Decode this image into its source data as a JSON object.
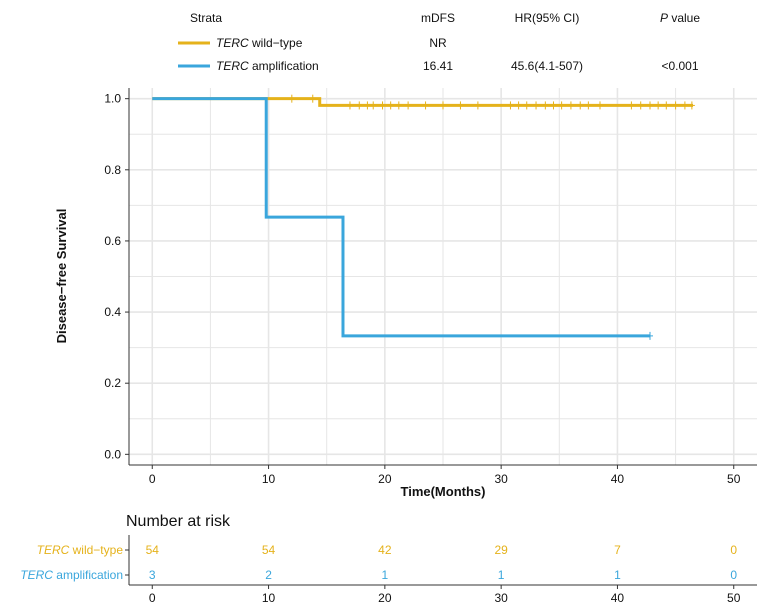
{
  "colors": {
    "wild": "#E5B21B",
    "amp": "#3AA6DC",
    "grid": "#E6E6E6",
    "axis": "#333333"
  },
  "legend": {
    "strata_header": "Strata",
    "mdfs_header": "mDFS",
    "hr_header": "HR(95% CI)",
    "p_header_italic": "P",
    "p_header_rest": " value",
    "rows": [
      {
        "gene": "TERC",
        "label": " wild−type",
        "mdfs": "NR",
        "hr": "",
        "p": ""
      },
      {
        "gene": "TERC",
        "label": " amplification",
        "mdfs": "16.41",
        "hr": "45.6(4.1-507)",
        "p": "<0.001"
      }
    ]
  },
  "chart_data": {
    "type": "line",
    "title": "",
    "xlabel": "Time(Months)",
    "ylabel": "Disease−free Survival",
    "xlim": [
      -2,
      52
    ],
    "ylim": [
      -0.03,
      1.03
    ],
    "xticks": [
      0,
      10,
      20,
      30,
      40,
      50
    ],
    "yticks": [
      0.0,
      0.2,
      0.4,
      0.6,
      0.8,
      1.0
    ],
    "ytick_labels": [
      "0.0",
      "0.2",
      "0.4",
      "0.6",
      "0.8",
      "1.0"
    ],
    "grid": true,
    "series": [
      {
        "name": "TERC wild−type",
        "color": "#E5B21B",
        "step_x": [
          0,
          14.4,
          46.5
        ],
        "step_y": [
          1.0,
          0.981,
          0.981
        ],
        "censor": [
          {
            "x": 12,
            "y": 1.0
          },
          {
            "x": 13.8,
            "y": 1.0
          },
          {
            "x": 17,
            "y": 0.981
          },
          {
            "x": 17.8,
            "y": 0.981
          },
          {
            "x": 18.5,
            "y": 0.981
          },
          {
            "x": 19,
            "y": 0.981
          },
          {
            "x": 19.8,
            "y": 0.981
          },
          {
            "x": 20.5,
            "y": 0.981
          },
          {
            "x": 21.2,
            "y": 0.981
          },
          {
            "x": 22,
            "y": 0.981
          },
          {
            "x": 23.5,
            "y": 0.981
          },
          {
            "x": 25,
            "y": 0.981
          },
          {
            "x": 26.5,
            "y": 0.981
          },
          {
            "x": 28,
            "y": 0.981
          },
          {
            "x": 30.8,
            "y": 0.981
          },
          {
            "x": 31.5,
            "y": 0.981
          },
          {
            "x": 32.2,
            "y": 0.981
          },
          {
            "x": 33,
            "y": 0.981
          },
          {
            "x": 33.8,
            "y": 0.981
          },
          {
            "x": 34.5,
            "y": 0.981
          },
          {
            "x": 35.2,
            "y": 0.981
          },
          {
            "x": 36,
            "y": 0.981
          },
          {
            "x": 36.8,
            "y": 0.981
          },
          {
            "x": 37.5,
            "y": 0.981
          },
          {
            "x": 38.5,
            "y": 0.981
          },
          {
            "x": 41.2,
            "y": 0.981
          },
          {
            "x": 42,
            "y": 0.981
          },
          {
            "x": 42.8,
            "y": 0.981
          },
          {
            "x": 43.5,
            "y": 0.981
          },
          {
            "x": 44.2,
            "y": 0.981
          },
          {
            "x": 45,
            "y": 0.981
          },
          {
            "x": 45.8,
            "y": 0.981
          },
          {
            "x": 46.4,
            "y": 0.981
          }
        ]
      },
      {
        "name": "TERC amplification",
        "color": "#3AA6DC",
        "step_x": [
          0,
          9.8,
          16.4,
          42.8
        ],
        "step_y": [
          1.0,
          0.667,
          0.333,
          0.333
        ],
        "censor": [
          {
            "x": 42.8,
            "y": 0.333
          }
        ]
      }
    ]
  },
  "risk_table": {
    "title": "Number at risk",
    "times": [
      0,
      10,
      20,
      30,
      40,
      50
    ],
    "rows": [
      {
        "gene": "TERC",
        "label": " wild−type",
        "color": "#E5B21B",
        "values": [
          "54",
          "54",
          "42",
          "29",
          "7",
          "0"
        ]
      },
      {
        "gene": "TERC",
        "label": " amplification",
        "color": "#3AA6DC",
        "values": [
          "3",
          "2",
          "1",
          "1",
          "1",
          "0"
        ]
      }
    ],
    "tick_labels": [
      "0",
      "10",
      "20",
      "30",
      "40",
      "50"
    ]
  }
}
